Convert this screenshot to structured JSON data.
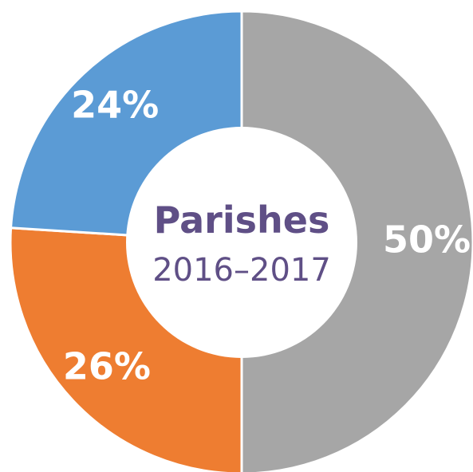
{
  "chart_data": {
    "type": "pie",
    "categories": [
      "",
      "",
      ""
    ],
    "values": [
      50,
      26,
      24
    ],
    "labels": [
      "50%",
      "26%",
      "24%"
    ],
    "colors": [
      "#A6A6A6",
      "#EE7D31",
      "#5B9BD5"
    ],
    "center_text": {
      "title": "Parishes",
      "subtitle": "2016–2017",
      "color": "#5F4F86"
    }
  }
}
